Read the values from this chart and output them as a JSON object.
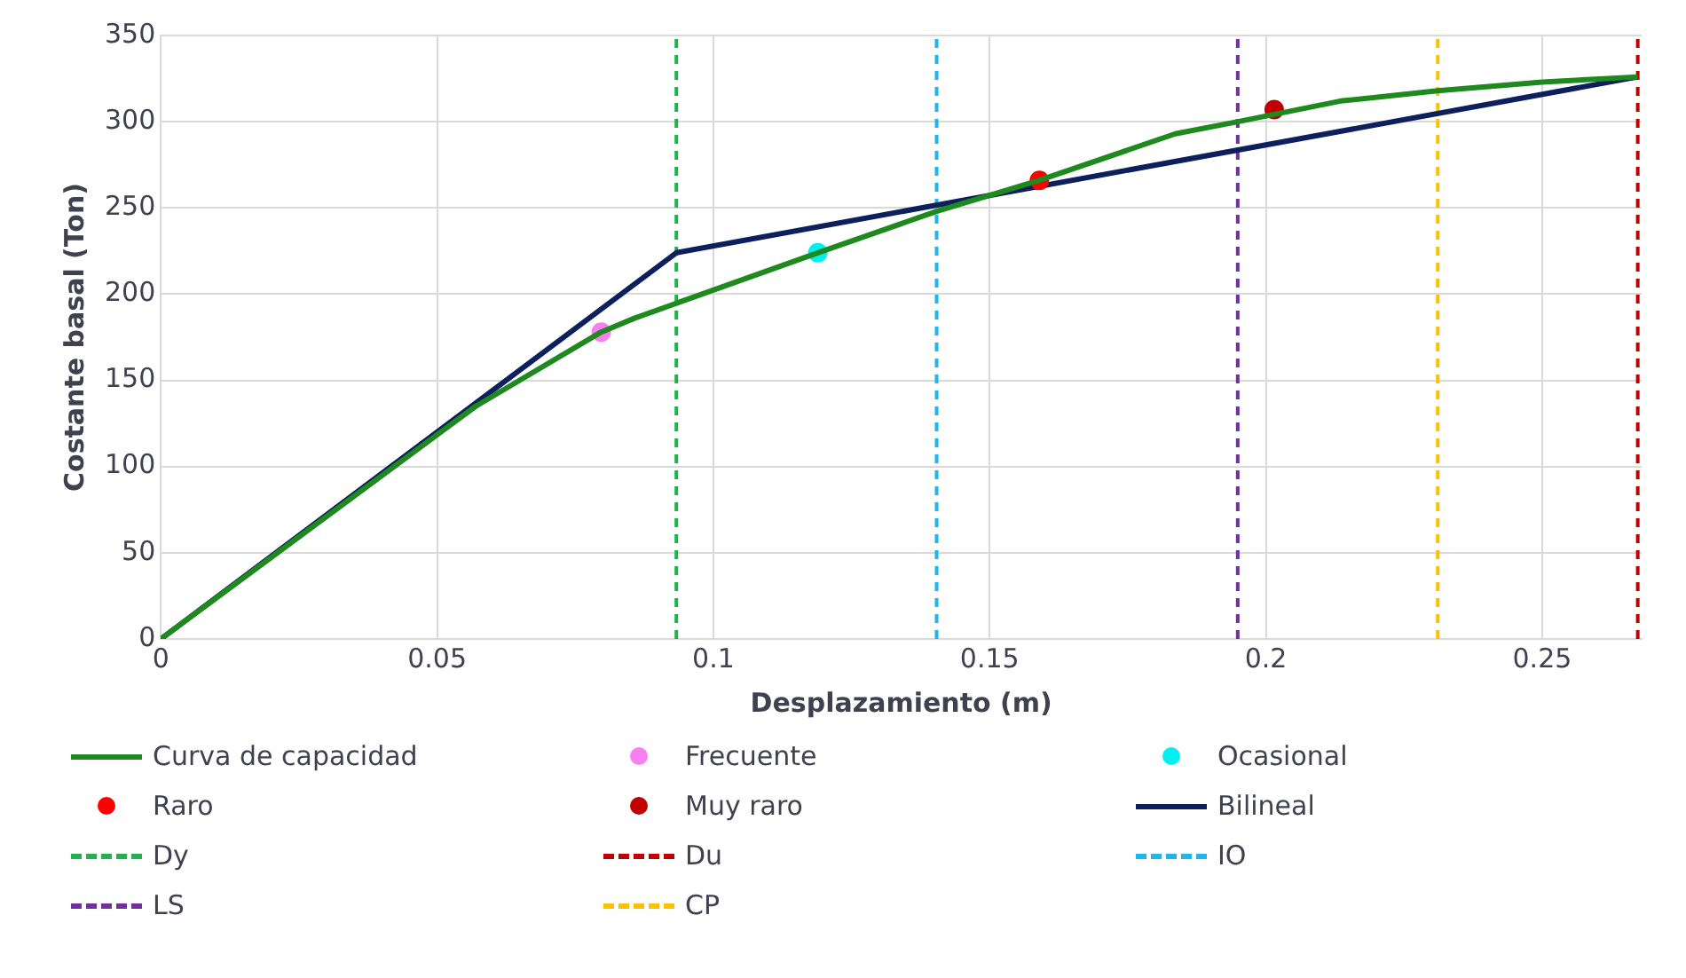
{
  "chart_data": {
    "type": "line",
    "xlabel": "Desplazamiento (m)",
    "ylabel": "Costante basal (Ton)",
    "xlim": [
      0,
      0.268
    ],
    "xticks": [
      0,
      0.05,
      0.1,
      0.15,
      0.2,
      0.25
    ],
    "ylim": [
      0,
      350
    ],
    "yticks": [
      0,
      50,
      100,
      150,
      200,
      250,
      300,
      350
    ],
    "grid": true,
    "legend": "bottom",
    "series": [
      {
        "name": "Curva de capacidad",
        "color": "#1e8a1e",
        "marker": "none",
        "line_style": "solid",
        "x": [
          0,
          0.057,
          0.0797,
          0.0857,
          0.1189,
          0.1404,
          0.159,
          0.1836,
          0.1949,
          0.2135,
          0.2311,
          0.25,
          0.2673
        ],
        "values": [
          0,
          135,
          178,
          186,
          224,
          248,
          266,
          293,
          300,
          312,
          318,
          323,
          326
        ]
      },
      {
        "name": "Frecuente",
        "type": "scatter",
        "color": "#f77ff0",
        "marker": "circle",
        "x": [
          0.0797
        ],
        "values": [
          178
        ]
      },
      {
        "name": "Ocasional",
        "type": "scatter",
        "color": "#00f0f0",
        "marker": "circle",
        "x": [
          0.1189
        ],
        "values": [
          224
        ]
      },
      {
        "name": "Raro",
        "type": "scatter",
        "color": "#ff0000",
        "marker": "circle",
        "x": [
          0.159
        ],
        "values": [
          266
        ]
      },
      {
        "name": "Muy raro",
        "type": "scatter",
        "color": "#c00000",
        "marker": "circle",
        "x": [
          0.2015
        ],
        "values": [
          307
        ]
      },
      {
        "name": "Bilineal",
        "color": "#0d1f5c",
        "marker": "none",
        "line_style": "solid",
        "x": [
          0,
          0.0933,
          0.2673
        ],
        "values": [
          0,
          224,
          326
        ]
      }
    ],
    "ref_lines": [
      {
        "axis": "x",
        "value": 0.0933,
        "label": "Dy",
        "color": "#22b14c",
        "line_style": "dashed"
      },
      {
        "axis": "x",
        "value": 0.2673,
        "label": "Du",
        "color": "#c00000",
        "line_style": "dashed"
      },
      {
        "axis": "x",
        "value": 0.1404,
        "label": "IO",
        "color": "#1fb5f0",
        "line_style": "dashed"
      },
      {
        "axis": "x",
        "value": 0.1949,
        "label": "LS",
        "color": "#7030a0",
        "line_style": "dashed"
      },
      {
        "axis": "x",
        "value": 0.2311,
        "label": "CP",
        "color": "#ffc000",
        "line_style": "dashed"
      }
    ]
  }
}
